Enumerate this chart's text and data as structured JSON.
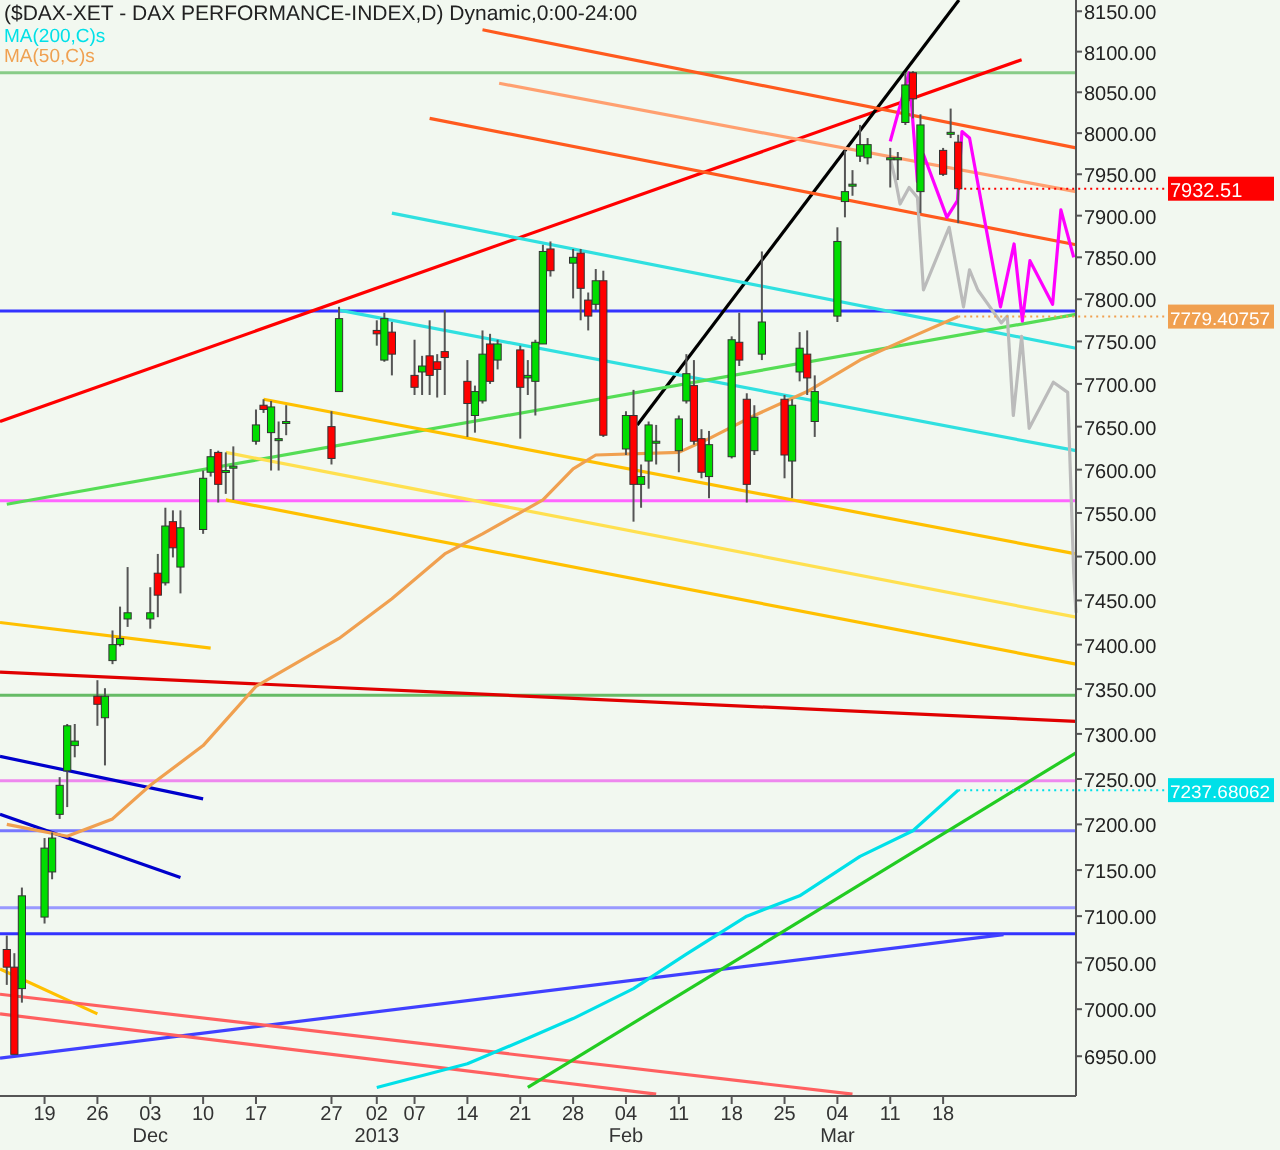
{
  "chart_data": {
    "type": "candlestick",
    "title": "($DAX-XET - DAX PERFORMANCE-INDEX,D) Dynamic,0:00-24:00",
    "log": true,
    "legend": "top left",
    "xlim": [
      "2012-11-13T02:24",
      "2013-04-04T14:24"
    ],
    "ylim": [
      6908,
      8164
    ],
    "xticks": [
      {
        "value": "2012-11-19",
        "label": "19"
      },
      {
        "value": "2012-11-26",
        "label": "26"
      },
      {
        "value": "2012-12-03",
        "label": "03\nDec"
      },
      {
        "value": "2012-12-10",
        "label": "10"
      },
      {
        "value": "2012-12-17",
        "label": "17"
      },
      {
        "value": "2012-12-27",
        "label": "27"
      },
      {
        "value": "2013-01-02",
        "label": "02\n2013"
      },
      {
        "value": "2013-01-07",
        "label": "07"
      },
      {
        "value": "2013-01-14",
        "label": "14"
      },
      {
        "value": "2013-01-21",
        "label": "21"
      },
      {
        "value": "2013-01-28",
        "label": "28"
      },
      {
        "value": "2013-02-04",
        "label": "04\nFeb"
      },
      {
        "value": "2013-02-11",
        "label": "11"
      },
      {
        "value": "2013-02-18",
        "label": "18"
      },
      {
        "value": "2013-02-25",
        "label": "25"
      },
      {
        "value": "2013-03-04",
        "label": "04\nMar"
      },
      {
        "value": "2013-03-11",
        "label": "11"
      },
      {
        "value": "2013-03-18",
        "label": "18"
      }
    ],
    "yticks": [
      {
        "value": 6950,
        "label": "6950.00"
      },
      {
        "value": 7000,
        "label": "7000.00"
      },
      {
        "value": 7050,
        "label": "7050.00"
      },
      {
        "value": 7100,
        "label": "7100.00"
      },
      {
        "value": 7150,
        "label": "7150.00"
      },
      {
        "value": 7200,
        "label": "7200.00"
      },
      {
        "value": 7250,
        "label": "7250.00"
      },
      {
        "value": 7300,
        "label": "7300.00"
      },
      {
        "value": 7350,
        "label": "7350.00"
      },
      {
        "value": 7400,
        "label": "7400.00"
      },
      {
        "value": 7450,
        "label": "7450.00"
      },
      {
        "value": 7500,
        "label": "7500.00"
      },
      {
        "value": 7550,
        "label": "7550.00"
      },
      {
        "value": 7600,
        "label": "7600.00"
      },
      {
        "value": 7650,
        "label": "7650.00"
      },
      {
        "value": 7700,
        "label": "7700.00"
      },
      {
        "value": 7750,
        "label": "7750.00"
      },
      {
        "value": 7800,
        "label": "7800.00"
      },
      {
        "value": 7850,
        "label": "7850.00"
      },
      {
        "value": 7900,
        "label": "7900.00"
      },
      {
        "value": 7950,
        "label": "7950.00"
      },
      {
        "value": 8000,
        "label": "8000.00"
      },
      {
        "value": 8050,
        "label": "8050.00"
      },
      {
        "value": 8100,
        "label": "8100.00"
      },
      {
        "value": 8150,
        "label": "8150.00"
      }
    ],
    "x": [
      "2012-11-14",
      "2012-11-15",
      "2012-11-16",
      "2012-11-19",
      "2012-11-20",
      "2012-11-21",
      "2012-11-22",
      "2012-11-23",
      "2012-11-26",
      "2012-11-27",
      "2012-11-28",
      "2012-11-29",
      "2012-11-30",
      "2012-12-03",
      "2012-12-04",
      "2012-12-05",
      "2012-12-06",
      "2012-12-07",
      "2012-12-10",
      "2012-12-11",
      "2012-12-12",
      "2012-12-13",
      "2012-12-14",
      "2012-12-17",
      "2012-12-18",
      "2012-12-19",
      "2012-12-20",
      "2012-12-21",
      "2012-12-27",
      "2012-12-28",
      "2013-01-02",
      "2013-01-03",
      "2013-01-04",
      "2013-01-07",
      "2013-01-08",
      "2013-01-09",
      "2013-01-10",
      "2013-01-11",
      "2013-01-14",
      "2013-01-15",
      "2013-01-16",
      "2013-01-17",
      "2013-01-18",
      "2013-01-21",
      "2013-01-22",
      "2013-01-23",
      "2013-01-24",
      "2013-01-25",
      "2013-01-28",
      "2013-01-29",
      "2013-01-30",
      "2013-01-31",
      "2013-02-01",
      "2013-02-04",
      "2013-02-05",
      "2013-02-06",
      "2013-02-07",
      "2013-02-08",
      "2013-02-11",
      "2013-02-12",
      "2013-02-13",
      "2013-02-14",
      "2013-02-15",
      "2013-02-18",
      "2013-02-19",
      "2013-02-20",
      "2013-02-21",
      "2013-02-22",
      "2013-02-25",
      "2013-02-26",
      "2013-02-27",
      "2013-02-28",
      "2013-03-01",
      "2013-03-04",
      "2013-03-05",
      "2013-03-06",
      "2013-03-07",
      "2013-03-08",
      "2013-03-11",
      "2013-03-12",
      "2013-03-13",
      "2013-03-14",
      "2013-03-15",
      "2013-03-18",
      "2013-03-19",
      "2013-03-20"
    ],
    "ohlc": [
      [
        7064,
        7079,
        7026,
        7045
      ],
      [
        7045,
        7060,
        6952,
        6952
      ],
      [
        7022,
        7131,
        7007,
        7122
      ],
      [
        7099,
        7185,
        7092,
        7174
      ],
      [
        7148,
        7191,
        7140,
        7185
      ],
      [
        7211,
        7252,
        7206,
        7243
      ],
      [
        7259,
        7311,
        7219,
        7309
      ],
      [
        7287,
        7311,
        7274,
        7292
      ],
      [
        7342,
        7360,
        7309,
        7333
      ],
      [
        7318,
        7351,
        7265,
        7342
      ],
      [
        7382,
        7416,
        7378,
        7400
      ],
      [
        7400,
        7443,
        7398,
        7407
      ],
      [
        7429,
        7488,
        7420,
        7436
      ],
      [
        7429,
        7465,
        7418,
        7436
      ],
      [
        7481,
        7503,
        7431,
        7456
      ],
      [
        7470,
        7556,
        7467,
        7535
      ],
      [
        7540,
        7553,
        7499,
        7510
      ],
      [
        7488,
        7553,
        7458,
        7533
      ],
      [
        7531,
        7599,
        7526,
        7590
      ],
      [
        7597,
        7624,
        7592,
        7615
      ],
      [
        7620,
        7622,
        7562,
        7583
      ],
      [
        7599,
        7620,
        7572,
        7599
      ],
      [
        7604,
        7627,
        7565,
        7604
      ],
      [
        7633,
        7670,
        7629,
        7652
      ],
      [
        7675,
        7682,
        7666,
        7670
      ],
      [
        7643,
        7680,
        7599,
        7673
      ],
      [
        7636,
        7656,
        7599,
        7636
      ],
      [
        7656,
        7675,
        7640,
        7656
      ],
      [
        7650,
        7668,
        7606,
        7613
      ],
      [
        7691,
        7791,
        7691,
        7777
      ],
      [
        7763,
        7775,
        7745,
        7759
      ],
      [
        7728,
        7784,
        7726,
        7777
      ],
      [
        7761,
        7773,
        7710,
        7735
      ],
      [
        7710,
        7752,
        7687,
        7696
      ],
      [
        7714,
        7733,
        7687,
        7721
      ],
      [
        7733,
        7775,
        7687,
        7710
      ],
      [
        7726,
        7735,
        7684,
        7717
      ],
      [
        7738,
        7787,
        7687,
        7731
      ],
      [
        7703,
        7728,
        7638,
        7677
      ],
      [
        7663,
        7698,
        7643,
        7691
      ],
      [
        7680,
        7763,
        7677,
        7735
      ],
      [
        7747,
        7759,
        7700,
        7703
      ],
      [
        7728,
        7752,
        7717,
        7747
      ],
      [
        7740,
        7745,
        7636,
        7696
      ],
      [
        7707,
        7728,
        7687,
        7710
      ],
      [
        7703,
        7752,
        7663,
        7749
      ],
      [
        7747,
        7865,
        7747,
        7857
      ],
      [
        7860,
        7869,
        7827,
        7834
      ],
      [
        7843,
        7860,
        7801,
        7850
      ],
      [
        7855,
        7860,
        7775,
        7813
      ],
      [
        7799,
        7808,
        7763,
        7780
      ],
      [
        7794,
        7836,
        7787,
        7822
      ],
      [
        7822,
        7834,
        7638,
        7640
      ],
      [
        7624,
        7668,
        7617,
        7663
      ],
      [
        7663,
        7693,
        7540,
        7583
      ],
      [
        7583,
        7606,
        7556,
        7592
      ],
      [
        7610,
        7656,
        7578,
        7652
      ],
      [
        7633,
        7652,
        7606,
        7633
      ],
      [
        7622,
        7663,
        7597,
        7659
      ],
      [
        7680,
        7735,
        7677,
        7712
      ],
      [
        7698,
        7728,
        7629,
        7633
      ],
      [
        7636,
        7647,
        7590,
        7597
      ],
      [
        7592,
        7645,
        7567,
        7629
      ],
      [
        7615,
        7756,
        7613,
        7752
      ],
      [
        7749,
        7784,
        7721,
        7728
      ],
      [
        7682,
        7689,
        7562,
        7583
      ],
      [
        7622,
        7675,
        7617,
        7661
      ],
      [
        7735,
        7857,
        7728,
        7773
      ],
      [
        7682,
        7687,
        7590,
        7617
      ],
      [
        7610,
        7682,
        7567,
        7675
      ],
      [
        7714,
        7761,
        7703,
        7742
      ],
      [
        7735,
        7763,
        7687,
        7707
      ],
      [
        7656,
        7710,
        7638,
        7691
      ],
      [
        7780,
        7886,
        7773,
        7869
      ],
      [
        7917,
        7979,
        7898,
        7929
      ],
      [
        7938,
        7955,
        7924,
        7938
      ],
      [
        7972,
        8010,
        7965,
        7986
      ],
      [
        7970,
        7994,
        7962,
        7986
      ],
      [
        7970,
        7982,
        7934,
        7970
      ],
      [
        7970,
        7977,
        7943,
        7970
      ],
      [
        8013,
        8074,
        8010,
        8059
      ],
      [
        8074,
        8076,
        8018,
        8042
      ],
      [
        7929,
        8023,
        7903,
        8010
      ],
      [
        7979,
        7982,
        7948,
        7950
      ],
      [
        8001,
        8030,
        7994,
        8001
      ],
      [
        7989,
        7998,
        7891,
        7932.51
      ]
    ],
    "series": [
      {
        "name": "MA(200,C)s",
        "type": "line",
        "color": "#00e0e8",
        "x": [
          "2013-01-02",
          "2013-01-14",
          "2013-01-22",
          "2013-01-28",
          "2013-02-05",
          "2013-02-12",
          "2013-02-20",
          "2013-02-27",
          "2013-03-07",
          "2013-03-14",
          "2013-03-20"
        ],
        "values": [
          6917,
          6942,
          6969,
          6990,
          7022,
          7059,
          7100,
          7122,
          7165,
          7193,
          7237.68062
        ],
        "value_labels": [
          null,
          null,
          null,
          null,
          null,
          null,
          null,
          null,
          null,
          null,
          "7237.68062"
        ]
      },
      {
        "name": "MA(50,C)s",
        "type": "line",
        "color": "#f0a050",
        "x": [
          "2012-11-14",
          "2012-11-22",
          "2012-11-28",
          "2012-12-03",
          "2012-12-10",
          "2012-12-17",
          "2012-12-28",
          "2013-01-04",
          "2013-01-11",
          "2013-01-16",
          "2013-01-24",
          "2013-01-28",
          "2013-01-31",
          "2013-02-11",
          "2013-02-15",
          "2013-02-21",
          "2013-02-28",
          "2013-03-07",
          "2013-03-14",
          "2013-03-20"
        ],
        "values": [
          7200,
          7187,
          7206,
          7243,
          7287,
          7353,
          7407,
          7452,
          7503,
          7526,
          7565,
          7601,
          7617,
          7620,
          7636,
          7663,
          7691,
          7728,
          7756,
          7779.40757
        ],
        "value_labels": [
          null,
          null,
          null,
          null,
          null,
          null,
          null,
          null,
          null,
          null,
          null,
          null,
          null,
          null,
          null,
          null,
          null,
          null,
          null,
          "7779.40757"
        ]
      },
      {
        "type": "line",
        "color": "#ff0000",
        "x": [
          "2012-11-13T02:24",
          "2013-03-28T09:36"
        ],
        "values": [
          7656,
          8090
        ]
      },
      {
        "type": "line",
        "color": "#000000",
        "x": [
          "2013-02-05T12:00",
          "2013-03-20T02:24"
        ],
        "values": [
          7652,
          8164
        ]
      },
      {
        "type": "line",
        "color": "#ff5a1e",
        "x": [
          "2013-01-16",
          "2013-04-04T14:24"
        ],
        "values": [
          8127,
          7982
        ]
      },
      {
        "type": "line",
        "color": "#ffa070",
        "x": [
          "2013-01-18T04:48",
          "2013-04-04T14:24"
        ],
        "values": [
          8061,
          7929
        ]
      },
      {
        "type": "line",
        "color": "#ff5a1e",
        "x": [
          "2013-01-09",
          "2013-04-04T14:24"
        ],
        "values": [
          8018,
          7865
        ]
      },
      {
        "type": "line",
        "color": "#30e0e0",
        "x": [
          "2013-01-04",
          "2013-04-04T14:24"
        ],
        "values": [
          7903,
          7742
        ]
      },
      {
        "type": "line",
        "color": "#30e0e0",
        "x": [
          "2012-12-28",
          "2013-04-04T14:24"
        ],
        "values": [
          7787,
          7622
        ]
      },
      {
        "type": "line",
        "color": "#55dd55",
        "x": [
          "2012-11-14",
          "2013-04-04T14:24"
        ],
        "values": [
          7560,
          7782
        ]
      },
      {
        "type": "line",
        "color": "#ffc000",
        "x": [
          "2012-12-18",
          "2013-04-04T14:24"
        ],
        "values": [
          7682,
          7503
        ]
      },
      {
        "type": "line",
        "color": "#ffe050",
        "x": [
          "2012-12-13",
          "2013-04-04T14:24"
        ],
        "values": [
          7620,
          7431
        ]
      },
      {
        "type": "line",
        "color": "#ffc000",
        "x": [
          "2012-12-13",
          "2013-04-04T14:24"
        ],
        "values": [
          7565,
          7378
        ]
      },
      {
        "type": "line",
        "color": "#ffc000",
        "x": [
          "2012-11-13T02:24",
          "2012-12-11"
        ],
        "values": [
          7425,
          7396
        ]
      },
      {
        "type": "line",
        "color": "#ffc000",
        "x": [
          "2012-11-13T02:24",
          "2012-11-26"
        ],
        "values": [
          7043,
          6995
        ]
      },
      {
        "type": "line",
        "color": "#e00000",
        "x": [
          "2012-11-13T02:24",
          "2013-04-04T14:24"
        ],
        "values": [
          7369,
          7314
        ]
      },
      {
        "type": "line",
        "color": "#0000cc",
        "x": [
          "2012-11-13T02:24",
          "2012-12-10"
        ],
        "values": [
          7275,
          7228
        ]
      },
      {
        "type": "line",
        "color": "#0000cc",
        "x": [
          "2012-11-13T02:24",
          "2012-12-07"
        ],
        "values": [
          7211,
          7142
        ]
      },
      {
        "type": "line",
        "color": "#4040ff",
        "x": [
          "2012-11-13T02:24",
          "2013-03-26"
        ],
        "values": [
          6948,
          7080
        ]
      },
      {
        "type": "line",
        "color": "#ff6060",
        "x": [
          "2012-11-13T02:24",
          "2013-03-06"
        ],
        "values": [
          7016,
          6910
        ]
      },
      {
        "type": "line",
        "color": "#ff6060",
        "x": [
          "2012-11-13T02:24",
          "2013-02-08"
        ],
        "values": [
          6995,
          6910
        ]
      },
      {
        "type": "line",
        "color": "#22cc22",
        "x": [
          "2013-01-22",
          "2013-04-04T14:24"
        ],
        "values": [
          6917,
          7279
        ]
      },
      {
        "type": "line",
        "color": "#ff00ff",
        "x": [
          "2013-03-11",
          "2013-03-13T12:00",
          "2013-03-14T14:24",
          "2013-03-15T09:36",
          "2013-03-18T12:00",
          "2013-03-19T21:36",
          "2013-03-20T12:00",
          "2013-03-21T12:00",
          "2013-03-25T14:24",
          "2013-03-27T09:36",
          "2013-03-28T12:00",
          "2013-03-29T12:00",
          "2013-04-01T12:00",
          "2013-04-02T14:24",
          "2013-04-04T07:12"
        ],
        "values": [
          7990,
          8074,
          7941,
          7974,
          7898,
          7918,
          8002,
          7994,
          7791,
          7866,
          7774,
          7846,
          7794,
          7907,
          7850
        ]
      },
      {
        "type": "line",
        "color": "#bbbbbb",
        "x": [
          "2013-03-11",
          "2013-03-11T19:12",
          "2013-03-12T07:12",
          "2013-03-13T12:00",
          "2013-03-14T14:24",
          "2013-03-15T09:36",
          "2013-03-18T19:12",
          "2013-03-20T16:48",
          "2013-03-21T12:00",
          "2013-03-22T14:24",
          "2013-03-25T16:48",
          "2013-03-26T12:00",
          "2013-03-27T07:12",
          "2013-03-28T09:36",
          "2013-03-29T09:36",
          "2013-04-01T14:24",
          "2013-04-03T12:00",
          "2013-04-04T07:12",
          "2013-04-04T14:24"
        ],
        "values": [
          7970,
          7938,
          7914,
          7934,
          7922,
          7811,
          7886,
          7791,
          7835,
          7811,
          7772,
          7780,
          7663,
          7756,
          7648,
          7702,
          7690,
          7481,
          7436
        ]
      }
    ],
    "ref_lines": [
      {
        "axis": "y",
        "value": 8074,
        "color": "#88cc88"
      },
      {
        "axis": "y",
        "value": 7343,
        "color": "#66bb66"
      },
      {
        "axis": "y",
        "value": 7786,
        "color": "#3333ff"
      },
      {
        "axis": "y",
        "value": 7564,
        "color": "#ff66ff"
      },
      {
        "axis": "y",
        "value": 7248,
        "color": "#ee88ee"
      },
      {
        "axis": "y",
        "value": 7193,
        "color": "#7777ff"
      },
      {
        "axis": "y",
        "value": 7109,
        "color": "#9999ff"
      },
      {
        "axis": "y",
        "value": 7081,
        "color": "#3333ff"
      }
    ],
    "annotations": [
      {
        "text": "7932.51",
        "x": "2013-03-20",
        "y": 7932.51
      }
    ]
  }
}
